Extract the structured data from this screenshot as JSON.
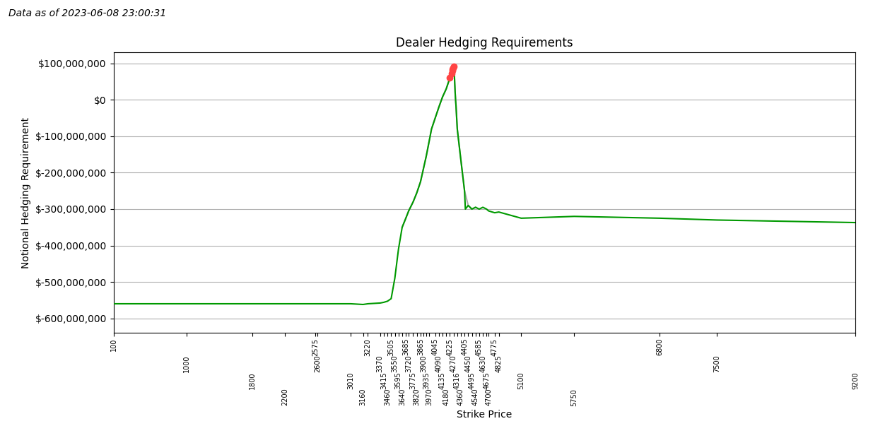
{
  "chart_data": {
    "type": "line",
    "title": "Dealer Hedging Requirements",
    "subtitle": "Data as of 2023-06-08 23:00:31",
    "x_label": "Strike Price",
    "y_label": "Notional Hedging Requirement",
    "grid": "y",
    "xlim": [
      100,
      9200
    ],
    "ylim": [
      -640000000,
      130000000
    ],
    "xticks": [
      100,
      1000,
      1800,
      2200,
      2575,
      2600,
      3010,
      3160,
      3220,
      3370,
      3415,
      3460,
      3505,
      3550,
      3595,
      3640,
      3685,
      3720,
      3775,
      3820,
      3865,
      3900,
      3935,
      3970,
      4045,
      4090,
      4135,
      4180,
      4225,
      4270,
      4316,
      4360,
      4405,
      4450,
      4495,
      4540,
      4585,
      4630,
      4675,
      4700,
      4775,
      4825,
      5100,
      5750,
      6800,
      7500,
      9200
    ],
    "yticks": [
      {
        "value": 100000000,
        "label": "$100,000,000"
      },
      {
        "value": 0,
        "label": "$0"
      },
      {
        "value": -100000000,
        "label": "$-100,000,000"
      },
      {
        "value": -200000000,
        "label": "$-200,000,000"
      },
      {
        "value": -300000000,
        "label": "$-300,000,000"
      },
      {
        "value": -400000000,
        "label": "$-400,000,000"
      },
      {
        "value": -500000000,
        "label": "$-500,000,000"
      },
      {
        "value": -600000000,
        "label": "$-600,000,000"
      }
    ],
    "series": [
      {
        "type": "line",
        "color": "#aaaaaa",
        "x": [
          3640,
          3685,
          3720,
          3775,
          3820,
          3865,
          3900,
          3935,
          3970,
          4000,
          4045,
          4090,
          4135,
          4180,
          4225,
          4260,
          4265,
          4270,
          4275,
          4280,
          4290,
          4300,
          4316,
          4360,
          4405,
          4450,
          4495,
          4540
        ],
        "values": [
          -350000000,
          -325000000,
          -305000000,
          -280000000,
          -255000000,
          -225000000,
          -190000000,
          -155000000,
          -115000000,
          -80000000,
          -50000000,
          -20000000,
          8000000,
          30000000,
          60000000,
          84000000,
          88000000,
          92000000,
          86000000,
          70000000,
          20000000,
          -15000000,
          -80000000,
          -165000000,
          -250000000,
          -290000000,
          -300000000,
          -295000000
        ]
      },
      {
        "type": "line",
        "color": "#009900",
        "x": [
          100,
          1000,
          1800,
          2200,
          2575,
          2600,
          3010,
          3160,
          3220,
          3370,
          3415,
          3460,
          3505,
          3550,
          3595,
          3640,
          3685,
          3720,
          3775,
          3820,
          3865,
          3900,
          3935,
          3970,
          4000,
          4045,
          4090,
          4135,
          4180,
          4225,
          4230,
          4245,
          4250,
          4255,
          4260,
          4265,
          4270,
          4275,
          4280,
          4290,
          4295,
          4300,
          4316,
          4360,
          4405,
          4410,
          4415,
          4450,
          4495,
          4540,
          4585,
          4630,
          4675,
          4700,
          4775,
          4825,
          5100,
          5750,
          6800,
          7500,
          9200
        ],
        "values": [
          -560000000,
          -560000000,
          -560000000,
          -560000000,
          -560000000,
          -560000000,
          -560000000,
          -562000000,
          -560000000,
          -558000000,
          -556000000,
          -553000000,
          -546000000,
          -490000000,
          -410000000,
          -350000000,
          -325000000,
          -305000000,
          -280000000,
          -255000000,
          -225000000,
          -190000000,
          -155000000,
          -115000000,
          -80000000,
          -50000000,
          -20000000,
          8000000,
          30000000,
          60000000,
          64000000,
          72000000,
          76000000,
          80000000,
          84000000,
          88000000,
          92000000,
          86000000,
          70000000,
          20000000,
          0,
          -15000000,
          -80000000,
          -165000000,
          -250000000,
          -275000000,
          -300000000,
          -290000000,
          -300000000,
          -295000000,
          -300000000,
          -295000000,
          -300000000,
          -305000000,
          -310000000,
          -308000000,
          -325000000,
          -320000000,
          -325000000,
          -330000000,
          -337000000
        ]
      },
      {
        "type": "scatter",
        "color": "#ff4444",
        "x": [
          4225,
          4245,
          4255,
          4260,
          4265,
          4270
        ],
        "values": [
          60000000,
          72000000,
          80000000,
          84000000,
          88000000,
          92000000
        ]
      }
    ]
  }
}
